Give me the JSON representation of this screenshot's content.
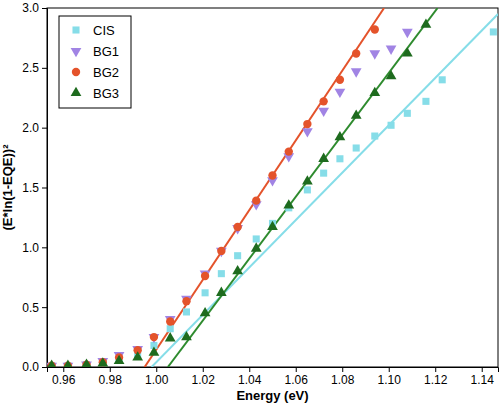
{
  "chart_data": {
    "type": "scatter",
    "x_label": "Energy (eV)",
    "y_label": "(E*ln(1-EQE))²",
    "x": [
      0.955,
      0.962,
      0.97,
      0.977,
      0.984,
      0.992,
      0.999,
      1.006,
      1.013,
      1.021,
      1.028,
      1.035,
      1.043,
      1.05,
      1.057,
      1.065,
      1.072,
      1.079,
      1.086,
      1.094,
      1.101,
      1.108,
      1.116,
      1.123,
      1.13,
      1.137,
      1.145
    ],
    "series": [
      {
        "name": "CIS",
        "color": "#86dde8",
        "marker": "square",
        "values": [
          0.01,
          0.01,
          0.02,
          0.04,
          0.06,
          0.1,
          0.18,
          0.32,
          0.46,
          0.62,
          0.78,
          0.93,
          1.07,
          1.2,
          1.33,
          1.48,
          1.62,
          1.74,
          1.83,
          1.93,
          2.02,
          2.12,
          2.22,
          2.4,
          null,
          null,
          2.8
        ],
        "fit": {
          "x": [
            0.998,
            1.147
          ],
          "y": [
            0,
            2.95
          ],
          "color": "#86dde8"
        }
      },
      {
        "name": "BG1",
        "color": "#a184e4",
        "marker": "triangle-down",
        "values": [
          0.01,
          0.01,
          0.02,
          0.05,
          0.1,
          0.15,
          0.25,
          0.4,
          0.57,
          0.78,
          0.97,
          1.16,
          1.36,
          1.56,
          1.76,
          1.97,
          2.14,
          2.3,
          2.47,
          2.62,
          2.66,
          2.8,
          null,
          null,
          null,
          null,
          null
        ]
      },
      {
        "name": "BG2",
        "color": "#e4532b",
        "marker": "circle",
        "values": [
          0.01,
          0.01,
          0.02,
          0.04,
          0.08,
          0.14,
          0.25,
          0.38,
          0.55,
          0.76,
          0.97,
          1.17,
          1.39,
          1.6,
          1.8,
          2.03,
          2.22,
          2.4,
          2.62,
          2.82,
          null,
          null,
          null,
          null,
          null,
          null,
          null
        ],
        "fit": {
          "x": [
            0.995,
            1.098
          ],
          "y": [
            0,
            3.0
          ],
          "color": "#e4532b"
        }
      },
      {
        "name": "BG3",
        "color": "#1e6b1e",
        "marker": "triangle",
        "values": [
          0.01,
          0.01,
          0.02,
          0.03,
          0.05,
          0.08,
          0.12,
          0.24,
          0.25,
          0.45,
          0.62,
          0.8,
          0.99,
          1.17,
          1.35,
          1.55,
          1.74,
          1.92,
          2.1,
          2.29,
          2.43,
          2.62,
          2.86,
          null,
          null,
          null,
          null
        ],
        "fit": {
          "x": [
            1.005,
            1.121
          ],
          "y": [
            0,
            3.0
          ],
          "color": "#2e8b2e"
        }
      }
    ],
    "xlim": [
      0.953,
      1.147
    ],
    "xticks": [
      0.96,
      0.98,
      {
        "value": 1,
        "label": "1.00"
      },
      1.02,
      1.04,
      1.06,
      1.08,
      {
        "value": 1.1,
        "label": "1.10"
      },
      1.12,
      1.14
    ],
    "ylim": [
      0,
      3
    ],
    "yticks": [
      {
        "value": 0,
        "label": "0.0"
      },
      0.5,
      {
        "value": 1,
        "label": "1.0"
      },
      1.5,
      {
        "value": 2,
        "label": "2.0"
      },
      2.5,
      {
        "value": 3,
        "label": "3.0"
      }
    ],
    "legend": "top-left",
    "grid": false
  }
}
